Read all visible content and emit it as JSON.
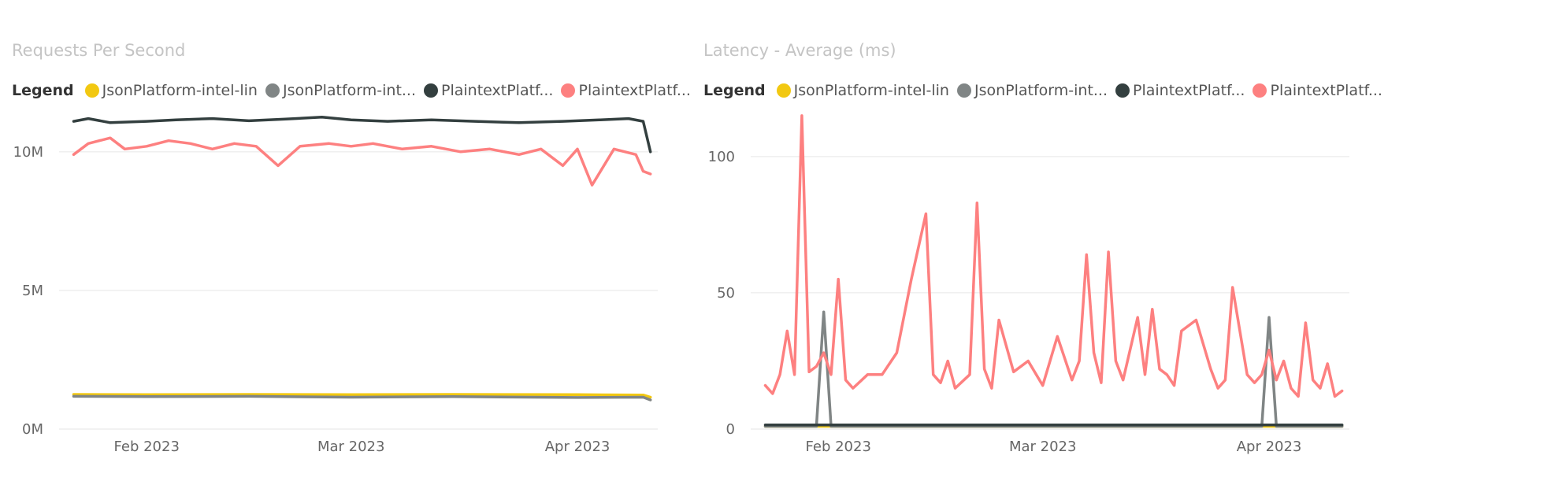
{
  "legend_label": "Legend",
  "chart_data": [
    {
      "type": "line",
      "title": "Requests Per Second",
      "xlabel": "",
      "ylabel": "",
      "x_ticks": [
        "Feb 2023",
        "Mar 2023",
        "Apr 2023"
      ],
      "y_ticks": [
        "0M",
        "5M",
        "10M"
      ],
      "ylim": [
        0,
        11500000
      ],
      "xlim": [
        "2023-01-20",
        "2023-04-12"
      ],
      "grid": true,
      "legend_position": "top-left",
      "series": [
        {
          "name": "JsonPlatform-intel-lin",
          "color": "#F2C811",
          "x": [
            "2023-01-22",
            "2023-02-01",
            "2023-02-15",
            "2023-03-01",
            "2023-03-15",
            "2023-04-01",
            "2023-04-10",
            "2023-04-11"
          ],
          "values": [
            1250000,
            1240000,
            1250000,
            1240000,
            1250000,
            1240000,
            1230000,
            1150000
          ]
        },
        {
          "name": "JsonPlatform-int...",
          "color": "#808585",
          "x": [
            "2023-01-22",
            "2023-02-01",
            "2023-02-15",
            "2023-03-01",
            "2023-03-15",
            "2023-04-01",
            "2023-04-10",
            "2023-04-11"
          ],
          "values": [
            1180000,
            1170000,
            1180000,
            1150000,
            1170000,
            1140000,
            1150000,
            1050000
          ]
        },
        {
          "name": "PlaintextPlatf...",
          "color": "#333F3F",
          "x": [
            "2023-01-22",
            "2023-01-24",
            "2023-01-27",
            "2023-02-01",
            "2023-02-05",
            "2023-02-10",
            "2023-02-15",
            "2023-02-20",
            "2023-02-25",
            "2023-03-01",
            "2023-03-06",
            "2023-03-12",
            "2023-03-18",
            "2023-03-24",
            "2023-03-30",
            "2023-04-04",
            "2023-04-08",
            "2023-04-10",
            "2023-04-11"
          ],
          "values": [
            11100000,
            11200000,
            11050000,
            11100000,
            11150000,
            11200000,
            11120000,
            11180000,
            11250000,
            11150000,
            11100000,
            11150000,
            11100000,
            11050000,
            11100000,
            11150000,
            11200000,
            11100000,
            10000000
          ]
        },
        {
          "name": "PlaintextPlatf...",
          "color": "#FD8080",
          "x": [
            "2023-01-22",
            "2023-01-24",
            "2023-01-27",
            "2023-01-29",
            "2023-02-01",
            "2023-02-04",
            "2023-02-07",
            "2023-02-10",
            "2023-02-13",
            "2023-02-16",
            "2023-02-19",
            "2023-02-22",
            "2023-02-26",
            "2023-03-01",
            "2023-03-04",
            "2023-03-08",
            "2023-03-12",
            "2023-03-16",
            "2023-03-20",
            "2023-03-24",
            "2023-03-27",
            "2023-03-30",
            "2023-04-01",
            "2023-04-03",
            "2023-04-06",
            "2023-04-09",
            "2023-04-10",
            "2023-04-11"
          ],
          "values": [
            9900000,
            10300000,
            10500000,
            10100000,
            10200000,
            10400000,
            10300000,
            10100000,
            10300000,
            10200000,
            9500000,
            10200000,
            10300000,
            10200000,
            10300000,
            10100000,
            10200000,
            10000000,
            10100000,
            9900000,
            10100000,
            9500000,
            10100000,
            8800000,
            10100000,
            9900000,
            9300000,
            9200000
          ]
        }
      ]
    },
    {
      "type": "line",
      "title": "Latency - Average (ms)",
      "xlabel": "",
      "ylabel": "",
      "x_ticks": [
        "Feb 2023",
        "Mar 2023",
        "Apr 2023"
      ],
      "y_ticks": [
        "0",
        "50",
        "100"
      ],
      "ylim": [
        0,
        117
      ],
      "xlim": [
        "2023-01-20",
        "2023-04-12"
      ],
      "grid": true,
      "legend_position": "top-left",
      "series": [
        {
          "name": "JsonPlatform-intel-lin",
          "color": "#F2C811",
          "x": [
            "2023-01-22",
            "2023-02-15",
            "2023-03-10",
            "2023-04-01",
            "2023-04-11"
          ],
          "values": [
            1,
            1,
            1,
            1,
            1
          ]
        },
        {
          "name": "JsonPlatform-int...",
          "color": "#808585",
          "x": [
            "2023-01-22",
            "2023-01-29",
            "2023-01-30",
            "2023-01-31",
            "2023-02-10",
            "2023-03-01",
            "2023-03-31",
            "2023-04-01",
            "2023-04-02",
            "2023-04-11"
          ],
          "values": [
            1,
            1,
            43,
            1,
            1,
            1,
            1,
            41,
            1,
            1
          ]
        },
        {
          "name": "PlaintextPlatf...",
          "color": "#333F3F",
          "x": [
            "2023-01-22",
            "2023-02-15",
            "2023-03-10",
            "2023-04-01",
            "2023-04-11"
          ],
          "values": [
            1.5,
            1.5,
            1.5,
            1.5,
            1.5
          ]
        },
        {
          "name": "PlaintextPlatf...",
          "color": "#FD8080",
          "x": [
            "2023-01-22",
            "2023-01-23",
            "2023-01-24",
            "2023-01-25",
            "2023-01-26",
            "2023-01-27",
            "2023-01-28",
            "2023-01-29",
            "2023-01-30",
            "2023-01-31",
            "2023-02-01",
            "2023-02-02",
            "2023-02-03",
            "2023-02-05",
            "2023-02-07",
            "2023-02-09",
            "2023-02-11",
            "2023-02-13",
            "2023-02-14",
            "2023-02-15",
            "2023-02-16",
            "2023-02-17",
            "2023-02-19",
            "2023-02-20",
            "2023-02-21",
            "2023-02-22",
            "2023-02-23",
            "2023-02-25",
            "2023-02-27",
            "2023-03-01",
            "2023-03-03",
            "2023-03-05",
            "2023-03-06",
            "2023-03-07",
            "2023-03-08",
            "2023-03-09",
            "2023-03-10",
            "2023-03-11",
            "2023-03-12",
            "2023-03-14",
            "2023-03-15",
            "2023-03-16",
            "2023-03-17",
            "2023-03-18",
            "2023-03-19",
            "2023-03-20",
            "2023-03-22",
            "2023-03-24",
            "2023-03-25",
            "2023-03-26",
            "2023-03-27",
            "2023-03-29",
            "2023-03-30",
            "2023-03-31",
            "2023-04-01",
            "2023-04-02",
            "2023-04-03",
            "2023-04-04",
            "2023-04-05",
            "2023-04-06",
            "2023-04-07",
            "2023-04-08",
            "2023-04-09",
            "2023-04-10",
            "2023-04-11"
          ],
          "values": [
            16,
            13,
            20,
            36,
            20,
            115,
            21,
            23,
            28,
            20,
            55,
            18,
            15,
            20,
            20,
            28,
            55,
            79,
            20,
            17,
            25,
            15,
            20,
            83,
            22,
            15,
            40,
            21,
            25,
            16,
            34,
            18,
            25,
            64,
            28,
            17,
            65,
            25,
            18,
            41,
            20,
            44,
            22,
            20,
            16,
            36,
            40,
            22,
            15,
            18,
            52,
            20,
            17,
            20,
            29,
            18,
            25,
            15,
            12,
            39,
            18,
            15,
            24,
            12,
            14
          ]
        }
      ]
    }
  ]
}
